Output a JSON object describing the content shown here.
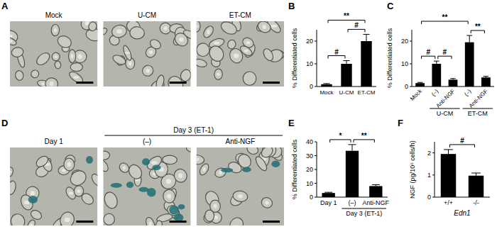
{
  "images": [
    {
      "panel": "A",
      "labels": [
        "Mock",
        "U-CM",
        "ET-CM"
      ]
    },
    {
      "panel": "D",
      "labels": [
        "Day 1",
        "(–)",
        "Anti-NGF"
      ],
      "group": {
        "label": "Day 3 (ET-1)",
        "from": 1,
        "to": 2
      }
    }
  ],
  "chart_data": [
    {
      "type": "bar",
      "panel": "B",
      "y_label": "% Differentiated cells",
      "categories": [
        "Mock",
        "U-CM",
        "ET-CM"
      ],
      "values": [
        1,
        10,
        20
      ],
      "errors": [
        0.3,
        1.4,
        3
      ],
      "color": "#000000",
      "ylim": [
        0,
        25
      ],
      "yticks": [
        0,
        10,
        20
      ],
      "annotations": [
        {
          "from": 0,
          "to": 1,
          "label": "#"
        },
        {
          "from": 1,
          "to": 2,
          "label": "#"
        },
        {
          "from": 0,
          "to": 2,
          "label": "**"
        }
      ]
    },
    {
      "type": "bar",
      "panel": "C",
      "y_label": "% Differentiated cells",
      "categories": [
        "Mock",
        "(–)",
        "Anti-NGF",
        "(–)",
        "Anti-NGF"
      ],
      "groups": [
        {
          "label": "U-CM",
          "from": 1,
          "to": 2
        },
        {
          "label": "ET-CM",
          "from": 3,
          "to": 4
        }
      ],
      "values": [
        1.5,
        10,
        3,
        19.5,
        4
      ],
      "errors": [
        0.3,
        1.2,
        0.5,
        3,
        0.5
      ],
      "color": "#000000",
      "ylim": [
        0,
        25
      ],
      "yticks": [
        0,
        10,
        20
      ],
      "annotations": [
        {
          "from": 0,
          "to": 1,
          "label": "#"
        },
        {
          "from": 1,
          "to": 2,
          "label": "#"
        },
        {
          "from": 0,
          "to": 3,
          "label": "**"
        },
        {
          "from": 3,
          "to": 4,
          "label": "**"
        }
      ]
    },
    {
      "type": "bar",
      "panel": "E",
      "y_label": "% Differentiated cells",
      "categories": [
        "Day 1",
        "(–)",
        "Anti-NGF"
      ],
      "groups": [
        {
          "label": "Day 3 (ET-1)",
          "from": 1,
          "to": 2
        }
      ],
      "values": [
        3,
        33.5,
        8
      ],
      "errors": [
        0.5,
        4.5,
        1
      ],
      "color": "#000000",
      "ylim": [
        0,
        40
      ],
      "yticks": [
        0,
        10,
        20,
        30,
        40
      ],
      "annotations": [
        {
          "from": 0,
          "to": 1,
          "label": "*"
        },
        {
          "from": 1,
          "to": 2,
          "label": "**"
        }
      ]
    },
    {
      "type": "bar",
      "panel": "F",
      "y_label": "NGF (pg/10⁶ cells/h)",
      "x_label": "Edn1",
      "categories": [
        "+/+",
        "-/-"
      ],
      "values": [
        1.95,
        0.97
      ],
      "errors": [
        0.2,
        0.12
      ],
      "color": "#000000",
      "ylim": [
        0,
        2.5
      ],
      "yticks": [
        0,
        1,
        2
      ],
      "annotations": [
        {
          "from": 0,
          "to": 1,
          "label": "#"
        }
      ]
    }
  ]
}
